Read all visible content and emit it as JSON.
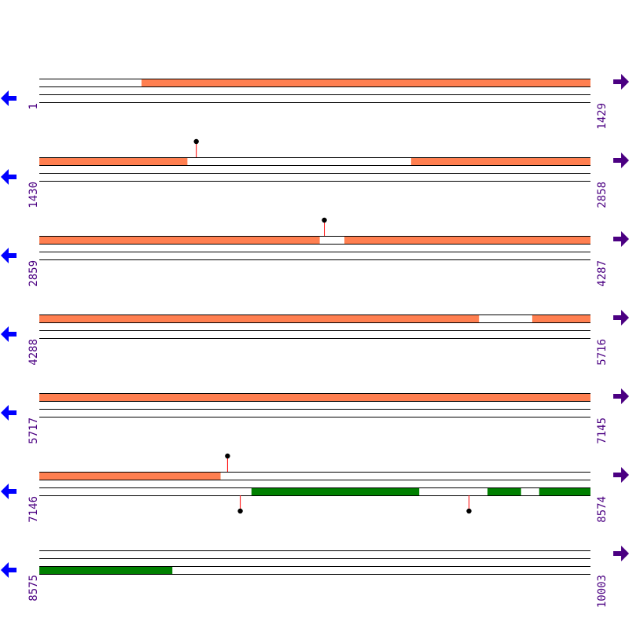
{
  "colors": {
    "top_feature": "#ff7f50",
    "bottom_feature": "#008000",
    "label": "#4b0082",
    "left_arrow": "#0000ff",
    "right_arrow": "#4b0082",
    "marker_stem": "#ff0000",
    "marker_head": "#000000"
  },
  "icons": {
    "left": "arrow-left-icon",
    "right": "arrow-right-icon"
  },
  "rows": [
    {
      "start": 1,
      "end": 1429,
      "top": [
        [
          266,
          1429
        ]
      ],
      "bottom": [],
      "top_markers": [],
      "bottom_markers": []
    },
    {
      "start": 1430,
      "end": 2858,
      "top": [
        [
          1430,
          1813
        ],
        [
          2394,
          2858
        ]
      ],
      "bottom": [],
      "top_markers": [
        1836
      ],
      "bottom_markers": []
    },
    {
      "start": 2859,
      "end": 4287,
      "top": [
        [
          2859,
          3585
        ],
        [
          3650,
          4287
        ]
      ],
      "bottom": [],
      "top_markers": [
        3597
      ],
      "bottom_markers": []
    },
    {
      "start": 4288,
      "end": 5716,
      "top": [
        [
          4288,
          5427
        ],
        [
          5566,
          5716
        ]
      ],
      "bottom": [],
      "top_markers": [],
      "bottom_markers": []
    },
    {
      "start": 5717,
      "end": 7145,
      "top": [
        [
          5717,
          7145
        ]
      ],
      "bottom": [],
      "top_markers": [],
      "bottom_markers": []
    },
    {
      "start": 7146,
      "end": 8574,
      "top": [
        [
          7146,
          7615
        ]
      ],
      "bottom": [
        [
          7696,
          8130
        ],
        [
          8308,
          8394
        ],
        [
          8442,
          8574
        ]
      ],
      "top_markers": [
        7633
      ],
      "bottom_markers": [
        7666,
        8259
      ]
    },
    {
      "start": 8575,
      "end": 10003,
      "top": [],
      "bottom": [
        [
          8575,
          8919
        ]
      ],
      "top_markers": [],
      "bottom_markers": []
    }
  ]
}
